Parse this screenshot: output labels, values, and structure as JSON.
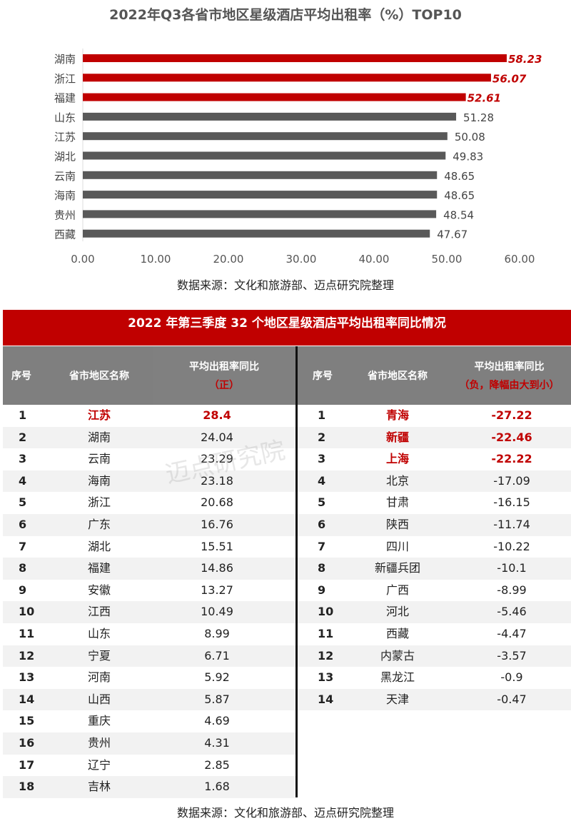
{
  "chart_data": {
    "type": "bar",
    "orientation": "horizontal",
    "title": "2022年Q3各省市地区星级酒店平均出租率（%）TOP10",
    "categories": [
      "湖南",
      "浙江",
      "福建",
      "山东",
      "江苏",
      "湖北",
      "云南",
      "海南",
      "贵州",
      "西藏"
    ],
    "values": [
      58.23,
      56.07,
      52.61,
      51.28,
      50.08,
      49.83,
      48.65,
      48.65,
      48.54,
      47.67
    ],
    "value_labels": [
      "58.23",
      "56.07",
      "52.61",
      "51.28",
      "50.08",
      "49.83",
      "48.65",
      "48.65",
      "48.54",
      "47.67"
    ],
    "highlight_count": 3,
    "xlim": [
      0,
      60
    ],
    "xticks": [
      "0.00",
      "10.00",
      "20.00",
      "30.00",
      "40.00",
      "50.00",
      "60.00"
    ],
    "grid": false,
    "colors": {
      "highlight": "#c00000",
      "normal": "#595959"
    },
    "source": "数据来源：文化和旅游部、迈点研究院整理"
  },
  "table": {
    "title": "2022 年第三季度 32 个地区星级酒店平均出租率同比情况",
    "left_headers": {
      "seq": "序号",
      "name": "省市地区名称",
      "value": "平均出租率同比",
      "value_sub": "（正）"
    },
    "right_headers": {
      "seq": "序号",
      "name": "省市地区名称",
      "value": "平均出租率同比",
      "value_sub": "（负，降幅由大到小）"
    },
    "left_rows": [
      {
        "seq": "1",
        "name": "江苏",
        "value": "28.4",
        "highlight": true
      },
      {
        "seq": "2",
        "name": "湖南",
        "value": "24.04"
      },
      {
        "seq": "3",
        "name": "云南",
        "value": "23.29"
      },
      {
        "seq": "4",
        "name": "海南",
        "value": "23.18"
      },
      {
        "seq": "5",
        "name": "浙江",
        "value": "20.68"
      },
      {
        "seq": "6",
        "name": "广东",
        "value": "16.76"
      },
      {
        "seq": "7",
        "name": "湖北",
        "value": "15.51"
      },
      {
        "seq": "8",
        "name": "福建",
        "value": "14.86"
      },
      {
        "seq": "9",
        "name": "安徽",
        "value": "13.27"
      },
      {
        "seq": "10",
        "name": "江西",
        "value": "10.49"
      },
      {
        "seq": "11",
        "name": "山东",
        "value": "8.99"
      },
      {
        "seq": "12",
        "name": "宁夏",
        "value": "6.71"
      },
      {
        "seq": "13",
        "name": "河南",
        "value": "5.92"
      },
      {
        "seq": "14",
        "name": "山西",
        "value": "5.87"
      },
      {
        "seq": "15",
        "name": "重庆",
        "value": "4.69"
      },
      {
        "seq": "16",
        "name": "贵州",
        "value": "4.31"
      },
      {
        "seq": "17",
        "name": "辽宁",
        "value": "2.85"
      },
      {
        "seq": "18",
        "name": "吉林",
        "value": "1.68"
      }
    ],
    "right_rows": [
      {
        "seq": "1",
        "name": "青海",
        "value": "-27.22",
        "highlight": true
      },
      {
        "seq": "2",
        "name": "新疆",
        "value": "-22.46",
        "highlight": true
      },
      {
        "seq": "3",
        "name": "上海",
        "value": "-22.22",
        "highlight": true
      },
      {
        "seq": "4",
        "name": "北京",
        "value": "-17.09"
      },
      {
        "seq": "5",
        "name": "甘肃",
        "value": "-16.15"
      },
      {
        "seq": "6",
        "name": "陕西",
        "value": "-11.74"
      },
      {
        "seq": "7",
        "name": "四川",
        "value": "-10.22"
      },
      {
        "seq": "8",
        "name": "新疆兵团",
        "value": "-10.1"
      },
      {
        "seq": "9",
        "name": "广西",
        "value": "-8.99"
      },
      {
        "seq": "10",
        "name": "河北",
        "value": "-5.46"
      },
      {
        "seq": "11",
        "name": "西藏",
        "value": "-4.47"
      },
      {
        "seq": "12",
        "name": "内蒙古",
        "value": "-3.57"
      },
      {
        "seq": "13",
        "name": "黑龙江",
        "value": "-0.9"
      },
      {
        "seq": "14",
        "name": "天津",
        "value": "-0.47"
      }
    ],
    "source": "数据来源：文化和旅游部、迈点研究院整理",
    "watermark": "迈点研究院"
  }
}
